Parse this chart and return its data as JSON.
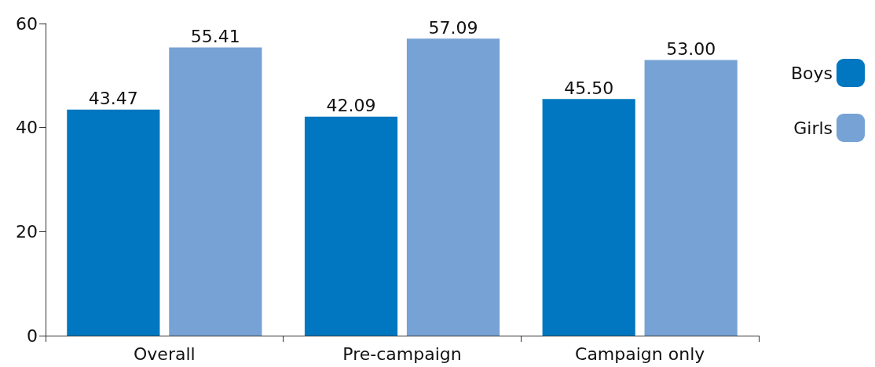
{
  "chart_data": {
    "type": "bar",
    "categories": [
      "Overall",
      "Pre-campaign",
      "Campaign only"
    ],
    "series": [
      {
        "name": "Boys",
        "color": "#0077c0",
        "values": [
          43.47,
          42.09,
          45.5
        ],
        "value_labels": [
          "43.47",
          "42.09",
          "45.50"
        ]
      },
      {
        "name": "Girls",
        "color": "#76a2d5",
        "values": [
          55.41,
          57.09,
          53.0
        ],
        "value_labels": [
          "55.41",
          "57.09",
          "53.00"
        ]
      }
    ],
    "ylim": [
      0,
      60
    ],
    "yticks": [
      0,
      20,
      40,
      60
    ],
    "grid": false,
    "legend": "top right"
  }
}
